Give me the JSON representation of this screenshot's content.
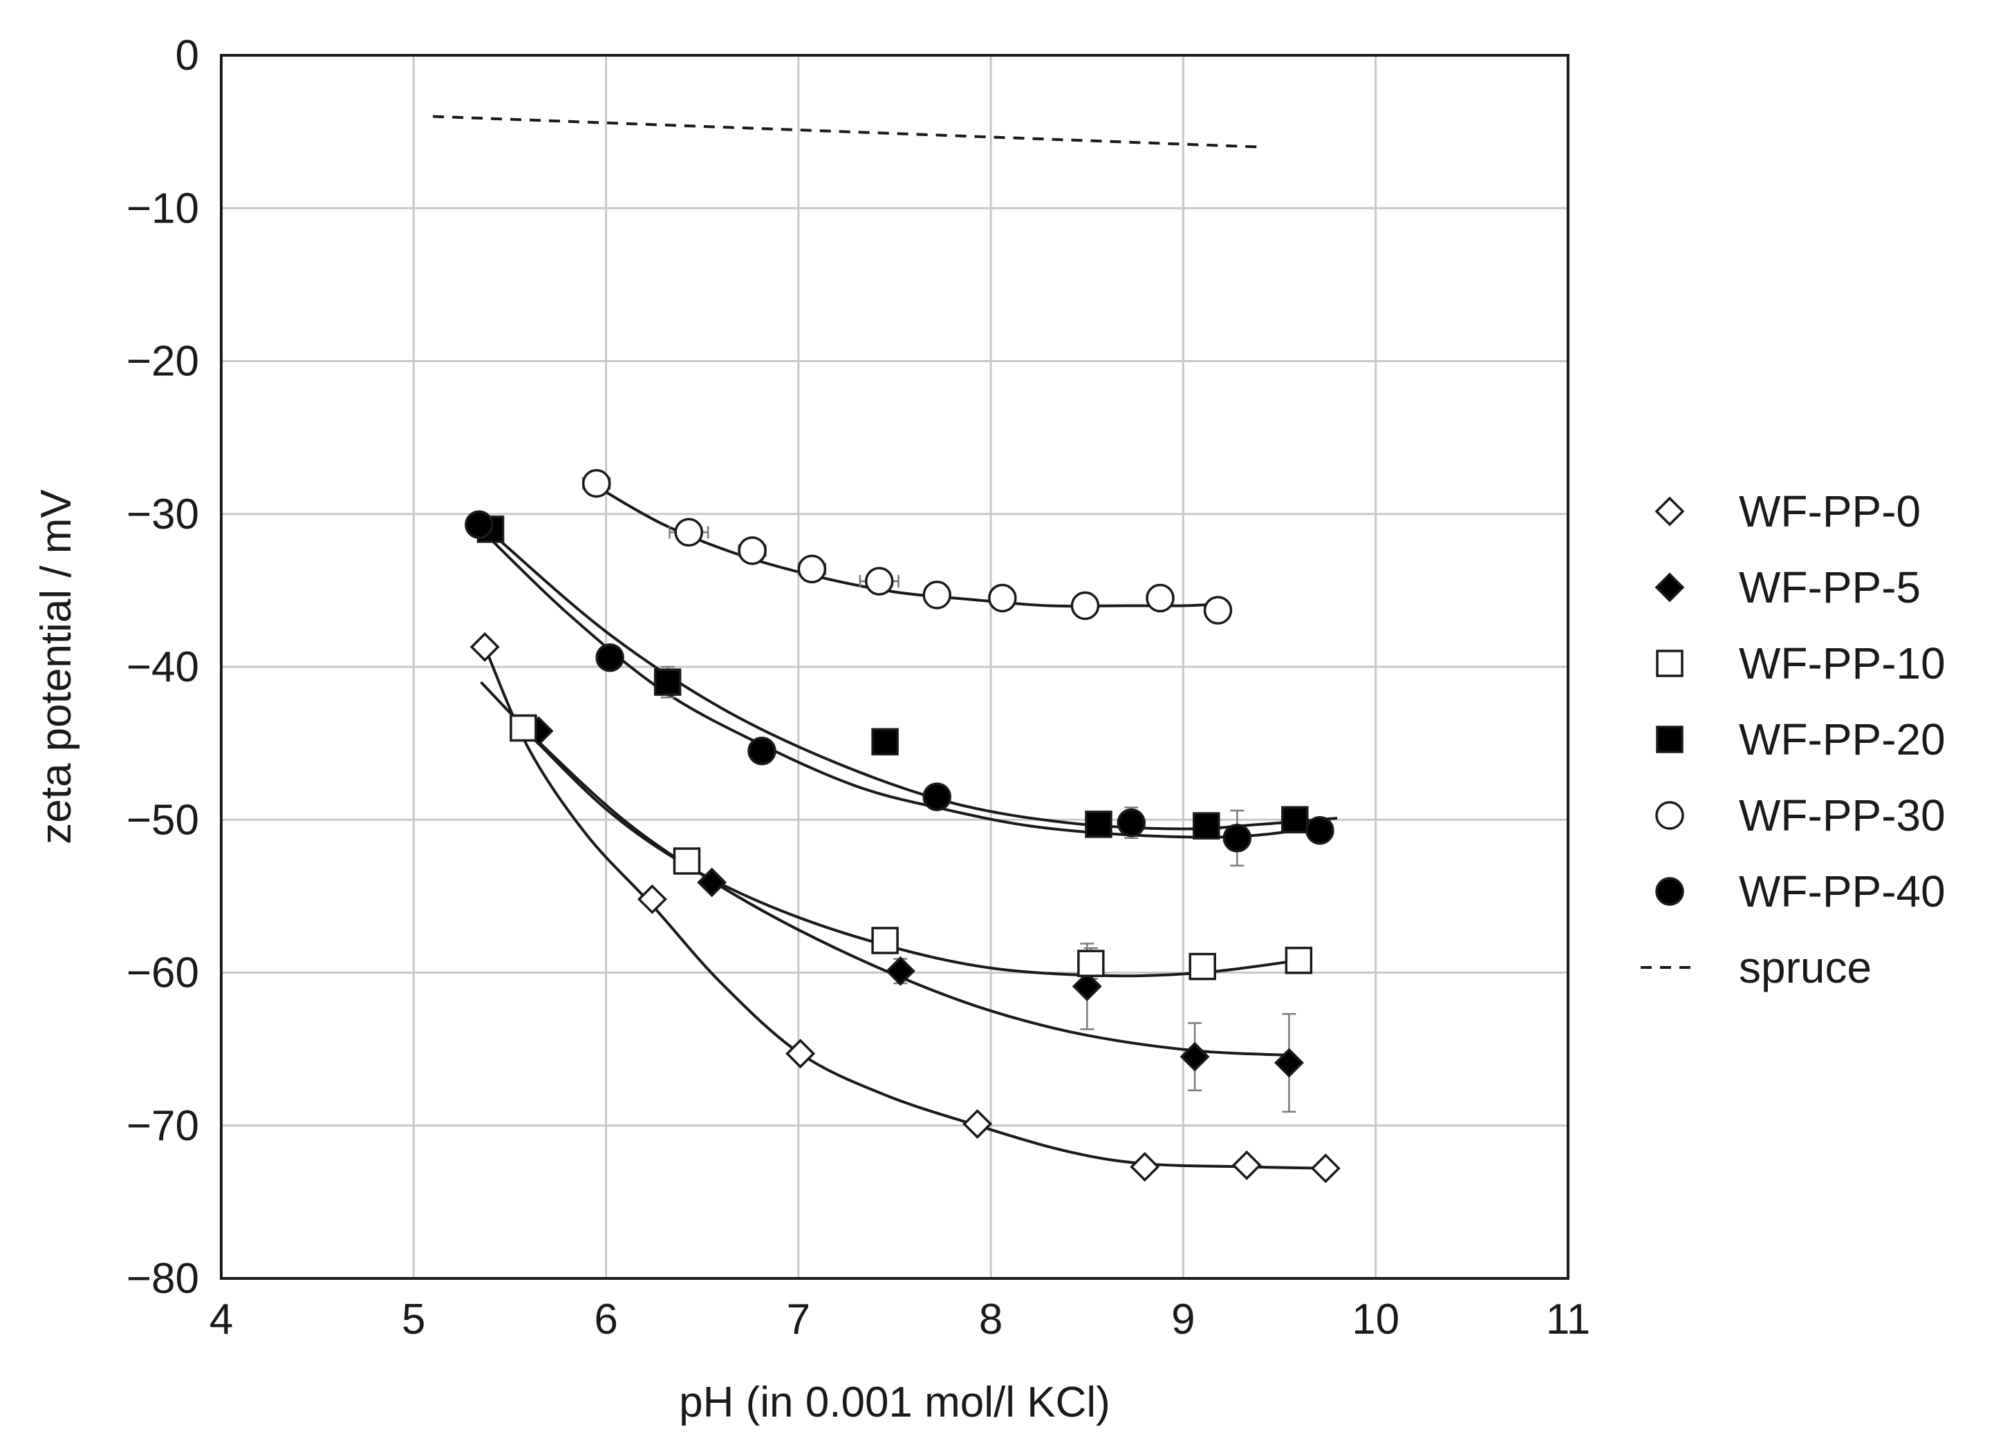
{
  "chart_data": {
    "type": "scatter",
    "title": "",
    "xlabel": "pH (in 0.001 mol/l KCl)",
    "ylabel": "zeta potential / mV",
    "xlim": [
      4,
      11
    ],
    "ylim": [
      -80,
      0
    ],
    "xticks": [
      4,
      5,
      6,
      7,
      8,
      9,
      10,
      11
    ],
    "yticks": [
      0,
      -10,
      -20,
      -30,
      -40,
      -50,
      -60,
      -70,
      -80
    ],
    "ytick_labels": [
      "0",
      "−10",
      "−20",
      "−30",
      "−40",
      "−50",
      "−60",
      "−70",
      "−80"
    ],
    "grid": true,
    "legend_position": "right",
    "series": [
      {
        "name": "WF-PP-0",
        "marker": "diamond-open",
        "x": [
          5.37,
          6.24,
          7.01,
          7.93,
          8.8,
          9.33,
          9.74
        ],
        "y": [
          -38.7,
          -55.2,
          -65.3,
          -69.9,
          -72.7,
          -72.6,
          -72.8
        ],
        "error": [
          0,
          0,
          0,
          0,
          0,
          0,
          0
        ],
        "fit_x": [
          5.37,
          5.6,
          5.9,
          6.24,
          6.6,
          7.01,
          7.45,
          7.93,
          8.4,
          8.8,
          9.33,
          9.74
        ],
        "fit_y": [
          -38.7,
          -45.4,
          -51.0,
          -55.6,
          -60.7,
          -65.3,
          -68.0,
          -70.0,
          -71.7,
          -72.5,
          -72.7,
          -72.8
        ]
      },
      {
        "name": "WF-PP-5",
        "marker": "diamond-filled",
        "x": [
          5.65,
          6.55,
          7.53,
          8.5,
          9.06,
          9.55
        ],
        "y": [
          -44.2,
          -54.1,
          -59.9,
          -60.9,
          -65.5,
          -65.9
        ],
        "error": [
          0,
          0,
          0.8,
          2.8,
          2.2,
          3.2
        ],
        "fit_x": [
          5.35,
          5.65,
          6.1,
          6.55,
          7.0,
          7.53,
          8.0,
          8.5,
          9.06,
          9.55
        ],
        "fit_y": [
          -41.0,
          -44.9,
          -50.1,
          -54.0,
          -57.2,
          -60.3,
          -62.5,
          -64.1,
          -65.1,
          -65.4
        ]
      },
      {
        "name": "WF-PP-10",
        "marker": "square-open",
        "x": [
          5.57,
          6.42,
          7.45,
          8.52,
          9.1,
          9.6
        ],
        "y": [
          -44.0,
          -52.7,
          -57.9,
          -59.4,
          -59.6,
          -59.2
        ],
        "error": [
          0,
          0,
          0,
          1.0,
          0,
          0
        ],
        "fit_x": [
          5.57,
          6.0,
          6.42,
          6.9,
          7.45,
          8.0,
          8.6,
          9.1,
          9.6
        ],
        "fit_y": [
          -44.0,
          -49.3,
          -53.0,
          -55.9,
          -58.2,
          -59.7,
          -60.2,
          -60.0,
          -59.2
        ]
      },
      {
        "name": "WF-PP-20",
        "marker": "square-filled",
        "x": [
          5.4,
          6.32,
          7.45,
          8.56,
          9.12,
          9.58
        ],
        "y": [
          -31.0,
          -41.0,
          -44.9,
          -50.3,
          -50.4,
          -50.0
        ],
        "error": [
          0,
          1.0,
          0,
          0,
          0,
          0
        ],
        "fit_x": [
          5.4,
          6.0,
          6.6,
          7.2,
          7.8,
          8.4,
          9.0,
          9.4,
          9.8
        ],
        "fit_y": [
          -31.2,
          -37.7,
          -42.7,
          -46.3,
          -48.9,
          -50.2,
          -50.6,
          -50.3,
          -49.9
        ]
      },
      {
        "name": "WF-PP-30",
        "marker": "circle-open",
        "x": [
          5.95,
          6.43,
          6.76,
          7.07,
          7.42,
          7.72,
          8.06,
          8.49,
          8.88,
          9.18
        ],
        "y": [
          -28.0,
          -31.2,
          -32.4,
          -33.6,
          -34.4,
          -35.3,
          -35.5,
          -36.0,
          -35.5,
          -36.3
        ],
        "error": [
          0,
          0,
          0,
          0,
          0,
          0,
          0,
          0,
          0,
          0
        ],
        "xerror": [
          0.07,
          0.1,
          0.07,
          0.07,
          0.1,
          0,
          0,
          0,
          0,
          0
        ],
        "fit_x": [
          5.95,
          6.3,
          6.7,
          7.1,
          7.5,
          7.9,
          8.3,
          8.7,
          9.0,
          9.18
        ],
        "fit_y": [
          -28.2,
          -30.7,
          -32.7,
          -34.1,
          -35.1,
          -35.6,
          -36.0,
          -36.0,
          -36.0,
          -35.9
        ]
      },
      {
        "name": "WF-PP-40",
        "marker": "circle-filled",
        "x": [
          5.34,
          6.02,
          6.81,
          7.72,
          8.73,
          9.28,
          9.71
        ],
        "y": [
          -30.7,
          -39.4,
          -45.5,
          -48.5,
          -50.2,
          -51.2,
          -50.7
        ],
        "error": [
          0,
          0,
          0,
          0,
          1.0,
          1.8,
          0
        ],
        "fit_x": [
          5.34,
          5.8,
          6.3,
          6.81,
          7.3,
          7.72,
          8.2,
          8.73,
          9.28,
          9.71
        ],
        "fit_y": [
          -30.9,
          -36.5,
          -41.6,
          -45.1,
          -47.8,
          -49.2,
          -50.4,
          -51.0,
          -51.1,
          -50.5
        ]
      },
      {
        "name": "spruce",
        "marker": "dashed-line",
        "x": [
          5.1,
          9.4
        ],
        "y": [
          -4.0,
          -6.0
        ],
        "error": [
          0,
          0
        ],
        "fit_x": [],
        "fit_y": []
      }
    ]
  }
}
